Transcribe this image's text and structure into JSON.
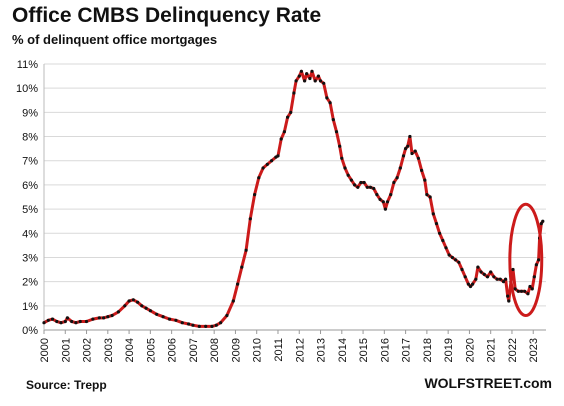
{
  "header": {
    "title": "Office CMBS Delinquency Rate",
    "subtitle": "% of delinquent office mortgages"
  },
  "footer": {
    "source": "Source: Trepp",
    "brand": "WOLFSTREET.com"
  },
  "colors": {
    "line": "#cc1b1b",
    "marker": "#111111",
    "highlight": "#cc1b1b",
    "grid": "#d9d9d9"
  },
  "chart_data": {
    "type": "line",
    "title": "Office CMBS Delinquency Rate",
    "subtitle": "% of delinquent office mortgages",
    "xlabel": "",
    "ylabel": "",
    "xlim": [
      2000,
      2023.6
    ],
    "ylim": [
      0,
      11
    ],
    "y_tick_labels": [
      "0%",
      "1%",
      "2%",
      "3%",
      "4%",
      "5%",
      "6%",
      "7%",
      "8%",
      "9%",
      "10%",
      "11%"
    ],
    "x_tick_labels": [
      "2000",
      "2001",
      "2002",
      "2003",
      "2004",
      "2005",
      "2006",
      "2007",
      "2008",
      "2009",
      "2010",
      "2011",
      "2012",
      "2013",
      "2014",
      "2015",
      "2016",
      "2017",
      "2018",
      "2019",
      "2020",
      "2021",
      "2022",
      "2023"
    ],
    "grid": true,
    "highlight": {
      "shape": "ellipse",
      "x_range": [
        2021.9,
        2023.4
      ],
      "y_range": [
        0.6,
        5.2
      ]
    },
    "series": [
      {
        "points": [
          [
            2000.0,
            0.3
          ],
          [
            2000.2,
            0.4
          ],
          [
            2000.4,
            0.45
          ],
          [
            2000.6,
            0.35
          ],
          [
            2000.8,
            0.3
          ],
          [
            2001.0,
            0.35
          ],
          [
            2001.1,
            0.5
          ],
          [
            2001.3,
            0.35
          ],
          [
            2001.5,
            0.3
          ],
          [
            2001.7,
            0.35
          ],
          [
            2002.0,
            0.35
          ],
          [
            2002.3,
            0.45
          ],
          [
            2002.6,
            0.5
          ],
          [
            2002.8,
            0.5
          ],
          [
            2003.0,
            0.55
          ],
          [
            2003.2,
            0.6
          ],
          [
            2003.5,
            0.75
          ],
          [
            2003.8,
            1.0
          ],
          [
            2004.0,
            1.2
          ],
          [
            2004.2,
            1.25
          ],
          [
            2004.4,
            1.15
          ],
          [
            2004.6,
            1.0
          ],
          [
            2004.8,
            0.9
          ],
          [
            2005.0,
            0.8
          ],
          [
            2005.3,
            0.65
          ],
          [
            2005.6,
            0.55
          ],
          [
            2005.9,
            0.45
          ],
          [
            2006.2,
            0.4
          ],
          [
            2006.5,
            0.3
          ],
          [
            2006.8,
            0.25
          ],
          [
            2007.0,
            0.2
          ],
          [
            2007.3,
            0.15
          ],
          [
            2007.6,
            0.15
          ],
          [
            2007.9,
            0.15
          ],
          [
            2008.1,
            0.2
          ],
          [
            2008.3,
            0.3
          ],
          [
            2008.6,
            0.6
          ],
          [
            2008.9,
            1.2
          ],
          [
            2009.1,
            1.9
          ],
          [
            2009.3,
            2.6
          ],
          [
            2009.5,
            3.3
          ],
          [
            2009.7,
            4.6
          ],
          [
            2009.9,
            5.6
          ],
          [
            2010.1,
            6.3
          ],
          [
            2010.3,
            6.7
          ],
          [
            2010.5,
            6.85
          ],
          [
            2010.7,
            7.0
          ],
          [
            2010.9,
            7.15
          ],
          [
            2011.0,
            7.2
          ],
          [
            2011.15,
            7.9
          ],
          [
            2011.3,
            8.2
          ],
          [
            2011.45,
            8.8
          ],
          [
            2011.6,
            9.0
          ],
          [
            2011.75,
            9.8
          ],
          [
            2011.85,
            10.3
          ],
          [
            2012.0,
            10.5
          ],
          [
            2012.1,
            10.7
          ],
          [
            2012.25,
            10.3
          ],
          [
            2012.35,
            10.6
          ],
          [
            2012.5,
            10.4
          ],
          [
            2012.6,
            10.7
          ],
          [
            2012.75,
            10.3
          ],
          [
            2012.9,
            10.5
          ],
          [
            2013.0,
            10.3
          ],
          [
            2013.15,
            10.2
          ],
          [
            2013.3,
            9.6
          ],
          [
            2013.45,
            9.4
          ],
          [
            2013.6,
            8.7
          ],
          [
            2013.75,
            8.2
          ],
          [
            2013.9,
            7.6
          ],
          [
            2014.0,
            7.1
          ],
          [
            2014.15,
            6.7
          ],
          [
            2014.3,
            6.4
          ],
          [
            2014.45,
            6.2
          ],
          [
            2014.6,
            6.0
          ],
          [
            2014.75,
            5.9
          ],
          [
            2014.9,
            6.1
          ],
          [
            2015.05,
            6.1
          ],
          [
            2015.2,
            5.9
          ],
          [
            2015.35,
            5.9
          ],
          [
            2015.5,
            5.85
          ],
          [
            2015.65,
            5.6
          ],
          [
            2015.8,
            5.4
          ],
          [
            2015.95,
            5.3
          ],
          [
            2016.05,
            5.0
          ],
          [
            2016.15,
            5.3
          ],
          [
            2016.3,
            5.6
          ],
          [
            2016.45,
            6.1
          ],
          [
            2016.6,
            6.3
          ],
          [
            2016.75,
            6.7
          ],
          [
            2016.9,
            7.2
          ],
          [
            2017.0,
            7.5
          ],
          [
            2017.1,
            7.6
          ],
          [
            2017.2,
            8.0
          ],
          [
            2017.3,
            7.3
          ],
          [
            2017.45,
            7.4
          ],
          [
            2017.6,
            7.1
          ],
          [
            2017.75,
            6.6
          ],
          [
            2017.9,
            6.2
          ],
          [
            2018.0,
            5.6
          ],
          [
            2018.15,
            5.5
          ],
          [
            2018.3,
            4.8
          ],
          [
            2018.45,
            4.4
          ],
          [
            2018.6,
            4.0
          ],
          [
            2018.75,
            3.7
          ],
          [
            2018.9,
            3.4
          ],
          [
            2019.05,
            3.1
          ],
          [
            2019.2,
            3.0
          ],
          [
            2019.35,
            2.9
          ],
          [
            2019.5,
            2.8
          ],
          [
            2019.65,
            2.5
          ],
          [
            2019.8,
            2.2
          ],
          [
            2019.95,
            1.9
          ],
          [
            2020.05,
            1.8
          ],
          [
            2020.15,
            1.9
          ],
          [
            2020.3,
            2.1
          ],
          [
            2020.4,
            2.6
          ],
          [
            2020.55,
            2.4
          ],
          [
            2020.7,
            2.3
          ],
          [
            2020.85,
            2.2
          ],
          [
            2021.0,
            2.4
          ],
          [
            2021.15,
            2.2
          ],
          [
            2021.3,
            2.1
          ],
          [
            2021.45,
            2.1
          ],
          [
            2021.6,
            2.0
          ],
          [
            2021.7,
            2.1
          ],
          [
            2021.8,
            1.4
          ],
          [
            2021.85,
            1.2
          ],
          [
            2021.95,
            2.0
          ],
          [
            2022.05,
            2.5
          ],
          [
            2022.15,
            1.7
          ],
          [
            2022.3,
            1.6
          ],
          [
            2022.45,
            1.6
          ],
          [
            2022.6,
            1.6
          ],
          [
            2022.75,
            1.5
          ],
          [
            2022.85,
            1.8
          ],
          [
            2022.95,
            1.7
          ],
          [
            2023.05,
            2.2
          ],
          [
            2023.15,
            2.7
          ],
          [
            2023.25,
            2.9
          ],
          [
            2023.3,
            3.8
          ],
          [
            2023.38,
            4.4
          ],
          [
            2023.45,
            4.5
          ]
        ]
      }
    ]
  }
}
